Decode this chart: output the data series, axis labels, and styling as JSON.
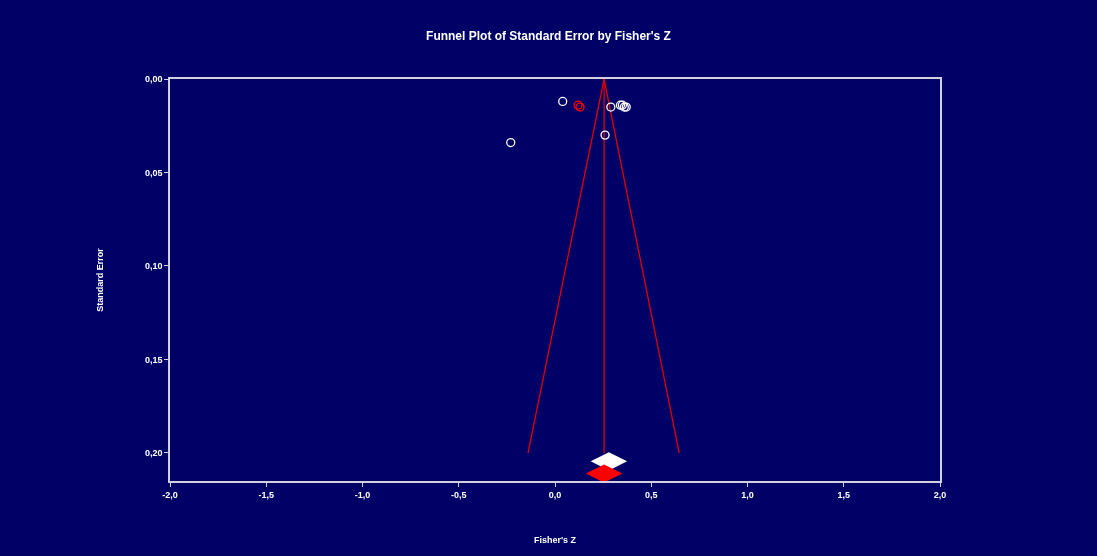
{
  "chart_data": {
    "type": "scatter",
    "title": "Funnel Plot of Standard Error by Fisher's Z",
    "xlabel": "Fisher's Z",
    "ylabel": "Standard Error",
    "xlim": [
      -2.0,
      2.0
    ],
    "xticks": [
      {
        "value": -2,
        "label": "-2,0"
      },
      {
        "value": -1.5,
        "label": "-1,5"
      },
      {
        "value": -1,
        "label": "-1,0"
      },
      {
        "value": -0.5,
        "label": "-0,5"
      },
      {
        "value": 0,
        "label": "0,0"
      },
      {
        "value": 0.5,
        "label": "0,5"
      },
      {
        "value": 1,
        "label": "1,0"
      },
      {
        "value": 1.5,
        "label": "1,5"
      },
      {
        "value": 2,
        "label": "2,0"
      }
    ],
    "ylim": [
      0.215,
      0
    ],
    "yticks": [
      {
        "value": 0,
        "label": "0,00"
      },
      {
        "value": 0.05,
        "label": "0,05"
      },
      {
        "value": 0.1,
        "label": "0,10"
      },
      {
        "value": 0.15,
        "label": "0,15"
      },
      {
        "value": 0.2,
        "label": "0,20"
      }
    ],
    "grid": false,
    "series": [
      {
        "type": "line",
        "color": "#e00000",
        "x": [
          -0.14,
          0.255,
          0.645
        ],
        "values": [
          0.2,
          0,
          0.2
        ]
      },
      {
        "type": "line",
        "color": "#e00000",
        "x": [
          0.255,
          0.255
        ],
        "values": [
          0,
          0.2
        ]
      },
      {
        "marker": "circle",
        "color": "#ffffff",
        "x": [
          0.04,
          0.29,
          0.26,
          -0.23,
          0.34,
          0.35,
          0.36,
          0.37
        ],
        "values": [
          0.012,
          0.015,
          0.03,
          0.034,
          0.014,
          0.014,
          0.015,
          0.015
        ]
      },
      {
        "marker": "circle",
        "color": "#ff0000",
        "x": [
          0.12,
          0.13
        ],
        "values": [
          0.014,
          0.015
        ]
      },
      {
        "marker": "diamond",
        "color": "#ffffff",
        "x": [
          0.28
        ],
        "values": [
          0.2045
        ]
      },
      {
        "marker": "diamond",
        "color": "#ff0000",
        "x": [
          0.255
        ],
        "values": [
          0.211
        ]
      }
    ]
  }
}
